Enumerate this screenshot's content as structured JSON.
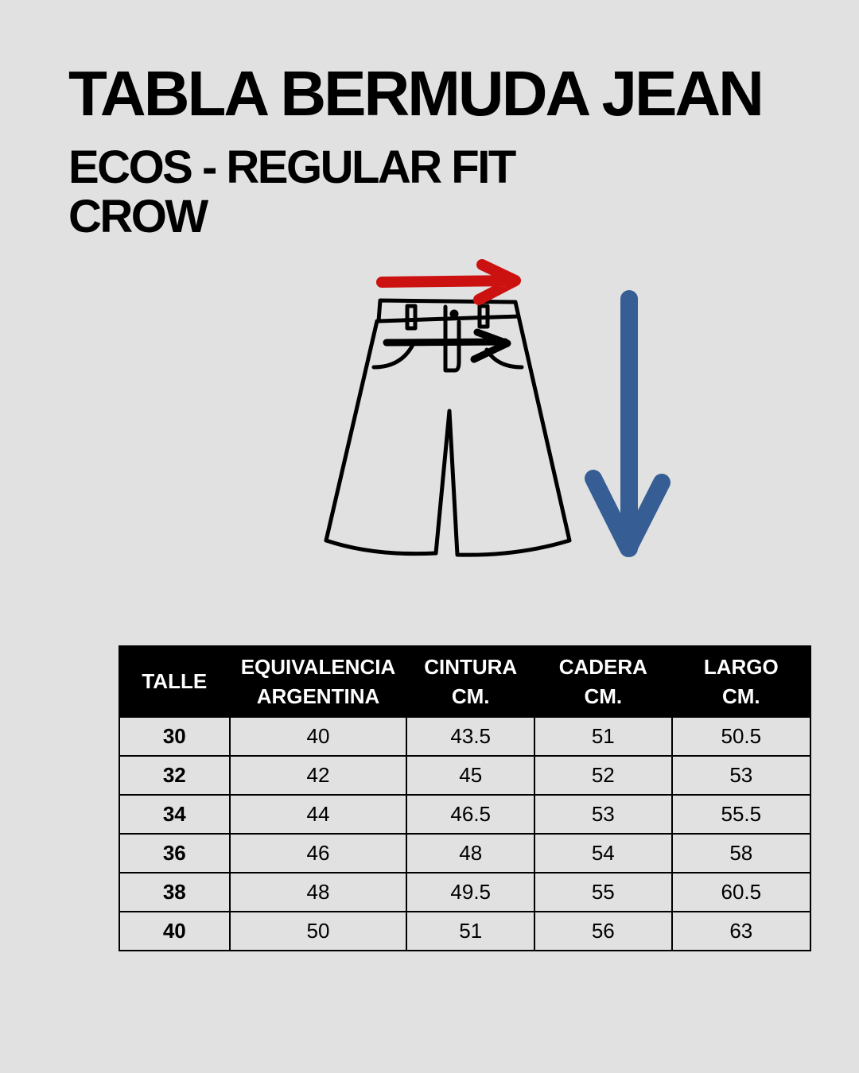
{
  "title": "TABLA BERMUDA JEAN",
  "subtitle_line1": "ECOS - REGULAR FIT",
  "subtitle_line2": "CROW",
  "illustration": {
    "garment": "shorts-icon",
    "waist_arrow_color": "#cc1111",
    "length_arrow_color": "#365e94"
  },
  "table": {
    "headers": [
      {
        "l1": "TALLE",
        "l2": ""
      },
      {
        "l1": "EQUIVALENCIA",
        "l2": "ARGENTINA"
      },
      {
        "l1": "CINTURA",
        "l2": "CM."
      },
      {
        "l1": "CADERA",
        "l2": "CM."
      },
      {
        "l1": "LARGO",
        "l2": "CM."
      }
    ],
    "rows": [
      [
        "30",
        "40",
        "43.5",
        "51",
        "50.5"
      ],
      [
        "32",
        "42",
        "45",
        "52",
        "53"
      ],
      [
        "34",
        "44",
        "46.5",
        "53",
        "55.5"
      ],
      [
        "36",
        "46",
        "48",
        "54",
        "58"
      ],
      [
        "38",
        "48",
        "49.5",
        "55",
        "60.5"
      ],
      [
        "40",
        "50",
        "51",
        "56",
        "63"
      ]
    ]
  }
}
